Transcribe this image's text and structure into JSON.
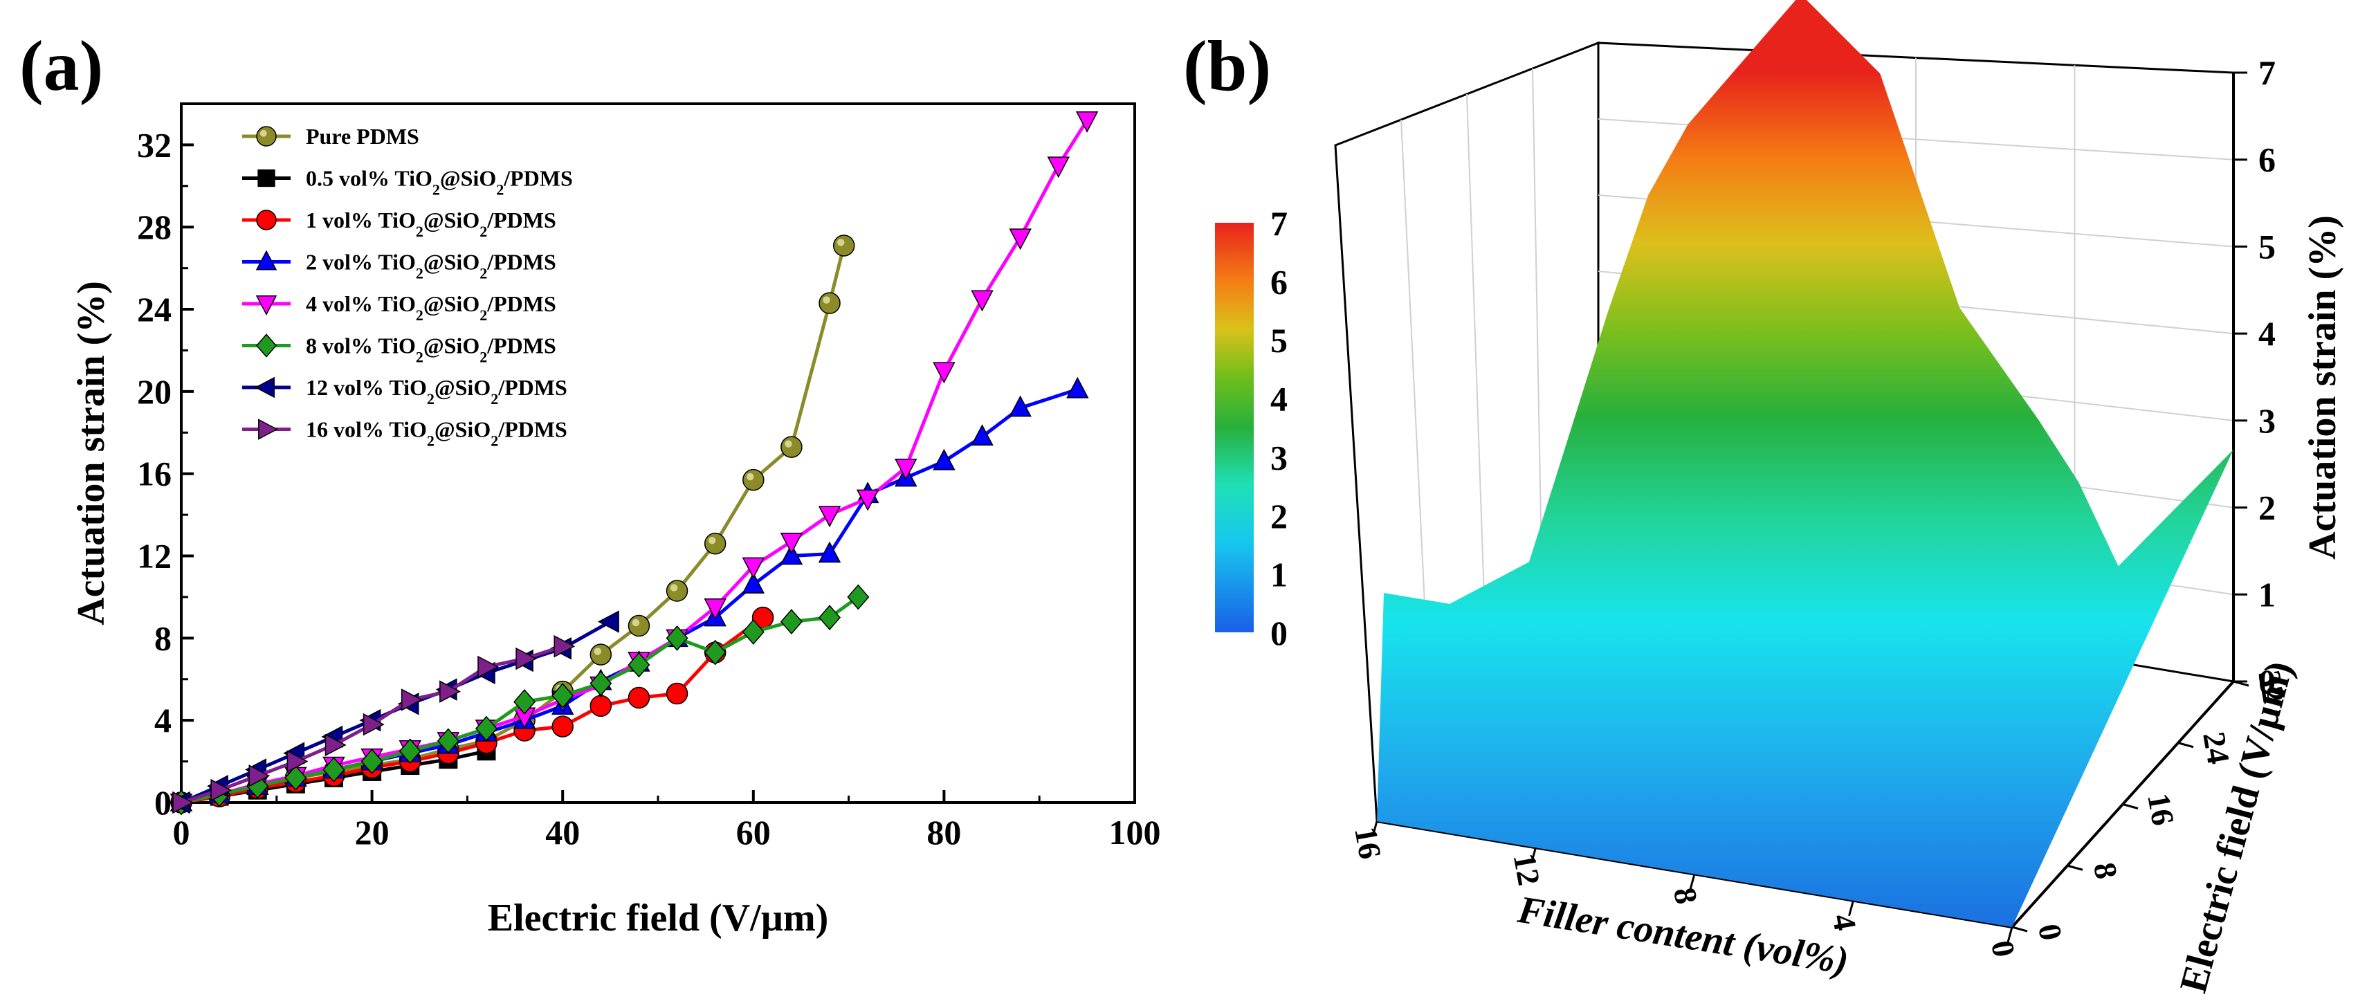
{
  "chart_data": [
    {
      "type": "line",
      "panel_label": "(a)",
      "xlabel": "Electric field (V/µm)",
      "ylabel": "Actuation strain (%)",
      "xlim": [
        0,
        100
      ],
      "ylim": [
        0,
        34
      ],
      "xticks": [
        0,
        20,
        40,
        60,
        80,
        100
      ],
      "yticks": [
        0,
        4,
        8,
        12,
        16,
        20,
        24,
        28,
        32
      ],
      "legend_position": "top-left",
      "grid": false,
      "series": [
        {
          "name": "Pure PDMS",
          "color": "#8b8b2a",
          "marker": "circle",
          "x": [
            0,
            4,
            8,
            12,
            16,
            20,
            24,
            28,
            32,
            36,
            40,
            44,
            48,
            52,
            56,
            60,
            64,
            68,
            69.5
          ],
          "y": [
            0,
            0.3,
            0.7,
            1.2,
            1.5,
            1.8,
            2.1,
            2.6,
            3.0,
            4.0,
            5.4,
            7.2,
            8.6,
            10.3,
            12.6,
            15.7,
            17.3,
            24.3,
            27.1
          ]
        },
        {
          "name": "0.5 vol% TiO2@SiO2/PDMS",
          "name_parts": [
            "0.5 vol% TiO",
            "2",
            "@SiO",
            "2",
            "/PDMS"
          ],
          "color": "#000000",
          "marker": "square",
          "x": [
            0,
            4,
            8,
            12,
            16,
            20,
            24,
            28,
            32
          ],
          "y": [
            0,
            0.3,
            0.6,
            0.9,
            1.2,
            1.5,
            1.8,
            2.1,
            2.5
          ]
        },
        {
          "name": "1 vol% TiO2@SiO2/PDMS",
          "name_parts": [
            "1 vol% TiO",
            "2",
            "@SiO",
            "2",
            "/PDMS"
          ],
          "color": "#ff0000",
          "marker": "circle",
          "x": [
            0,
            4,
            8,
            12,
            16,
            20,
            24,
            28,
            32,
            36,
            40,
            44,
            48,
            52,
            56,
            61
          ],
          "y": [
            0,
            0.3,
            0.7,
            1.0,
            1.3,
            1.7,
            2.0,
            2.4,
            2.9,
            3.5,
            3.7,
            4.7,
            5.1,
            5.3,
            7.3,
            9.0
          ]
        },
        {
          "name": "2 vol% TiO2@SiO2/PDMS",
          "name_parts": [
            "2 vol% TiO",
            "2",
            "@SiO",
            "2",
            "/PDMS"
          ],
          "color": "#0000ff",
          "marker": "triangle-up",
          "x": [
            0,
            4,
            8,
            12,
            16,
            20,
            24,
            28,
            32,
            36,
            40,
            44,
            48,
            52,
            56,
            60,
            64,
            68,
            72,
            76,
            80,
            84,
            88,
            94
          ],
          "y": [
            0,
            0.4,
            0.8,
            1.2,
            1.6,
            2.0,
            2.4,
            2.8,
            3.4,
            4.0,
            4.7,
            5.9,
            6.8,
            8.0,
            9.0,
            10.6,
            12.0,
            12.1,
            15.0,
            15.8,
            16.6,
            17.8,
            19.2,
            20.1
          ]
        },
        {
          "name": "4 vol% TiO2@SiO2/PDMS",
          "name_parts": [
            "4 vol% TiO",
            "2",
            "@SiO",
            "2",
            "/PDMS"
          ],
          "color": "#ff00ff",
          "marker": "triangle-down",
          "x": [
            0,
            4,
            8,
            12,
            16,
            20,
            24,
            28,
            32,
            36,
            40,
            44,
            48,
            52,
            56,
            60,
            64,
            68,
            72,
            76,
            80,
            84,
            88,
            92,
            95
          ],
          "y": [
            0,
            0.4,
            0.9,
            1.3,
            1.8,
            2.2,
            2.6,
            3.0,
            3.6,
            4.2,
            5.0,
            5.7,
            6.9,
            8.0,
            9.5,
            11.5,
            12.7,
            14.0,
            14.8,
            16.3,
            21.0,
            24.5,
            27.5,
            31.0,
            33.2
          ]
        },
        {
          "name": "8 vol% TiO2@SiO2/PDMS",
          "name_parts": [
            "8 vol% TiO",
            "2",
            "@SiO",
            "2",
            "/PDMS"
          ],
          "color": "#1f9a1f",
          "marker": "diamond",
          "x": [
            0,
            4,
            8,
            12,
            16,
            20,
            24,
            28,
            32,
            36,
            40,
            44,
            48,
            52,
            56,
            60,
            64,
            68,
            71
          ],
          "y": [
            0,
            0.4,
            0.8,
            1.2,
            1.6,
            2.0,
            2.5,
            3.0,
            3.6,
            4.9,
            5.2,
            5.8,
            6.7,
            8.0,
            7.3,
            8.3,
            8.8,
            9.0,
            10.0
          ]
        },
        {
          "name": "12 vol% TiO2@SiO2/PDMS",
          "name_parts": [
            "12 vol% TiO",
            "2",
            "@SiO",
            "2",
            "/PDMS"
          ],
          "color": "#00008b",
          "marker": "triangle-left",
          "x": [
            0,
            4,
            8,
            12,
            16,
            20,
            24,
            28,
            32,
            36,
            40,
            45
          ],
          "y": [
            0,
            0.8,
            1.6,
            2.4,
            3.2,
            4.0,
            4.8,
            5.5,
            6.3,
            6.9,
            7.5,
            8.8
          ]
        },
        {
          "name": "16 vol% TiO2@SiO2/PDMS",
          "name_parts": [
            "16 vol% TiO",
            "2",
            "@SiO",
            "2",
            "/PDMS"
          ],
          "color": "#7f1f8b",
          "marker": "triangle-right",
          "x": [
            0,
            4,
            8,
            12,
            16,
            20,
            24,
            28,
            32,
            36,
            40
          ],
          "y": [
            0,
            0.6,
            1.3,
            2.0,
            2.8,
            3.8,
            5.0,
            5.4,
            6.6,
            7.0,
            7.6
          ]
        }
      ]
    },
    {
      "type": "surface",
      "panel_label": "(b)",
      "xlabel": "Filler content (vol%)",
      "ylabel": "Electric field (V/µm)",
      "zlabel": "Actuation strain (%)",
      "xticks": [
        16,
        12,
        8,
        4,
        0
      ],
      "yticks": [
        0,
        8,
        16,
        24,
        32
      ],
      "zticks": [
        0,
        1,
        2,
        3,
        4,
        5,
        6,
        7
      ],
      "colorbar": {
        "min": 0,
        "max": 7,
        "ticks": [
          7,
          6,
          5,
          4,
          3,
          2,
          1,
          0
        ],
        "colors": [
          "#1a5fe8",
          "#16c8ee",
          "#1fe0b4",
          "#27b03c",
          "#6dbe1a",
          "#d9c21a",
          "#f57c14",
          "#e8231c"
        ]
      },
      "peak_profile": {
        "filler": [
          16,
          14,
          12,
          11,
          10,
          8,
          6,
          4,
          2,
          1,
          0
        ],
        "strain": [
          0.9,
          1.4,
          3.8,
          4.9,
          5.6,
          6.9,
          6.3,
          4.3,
          3.4,
          2.9,
          2.2
        ]
      }
    }
  ]
}
